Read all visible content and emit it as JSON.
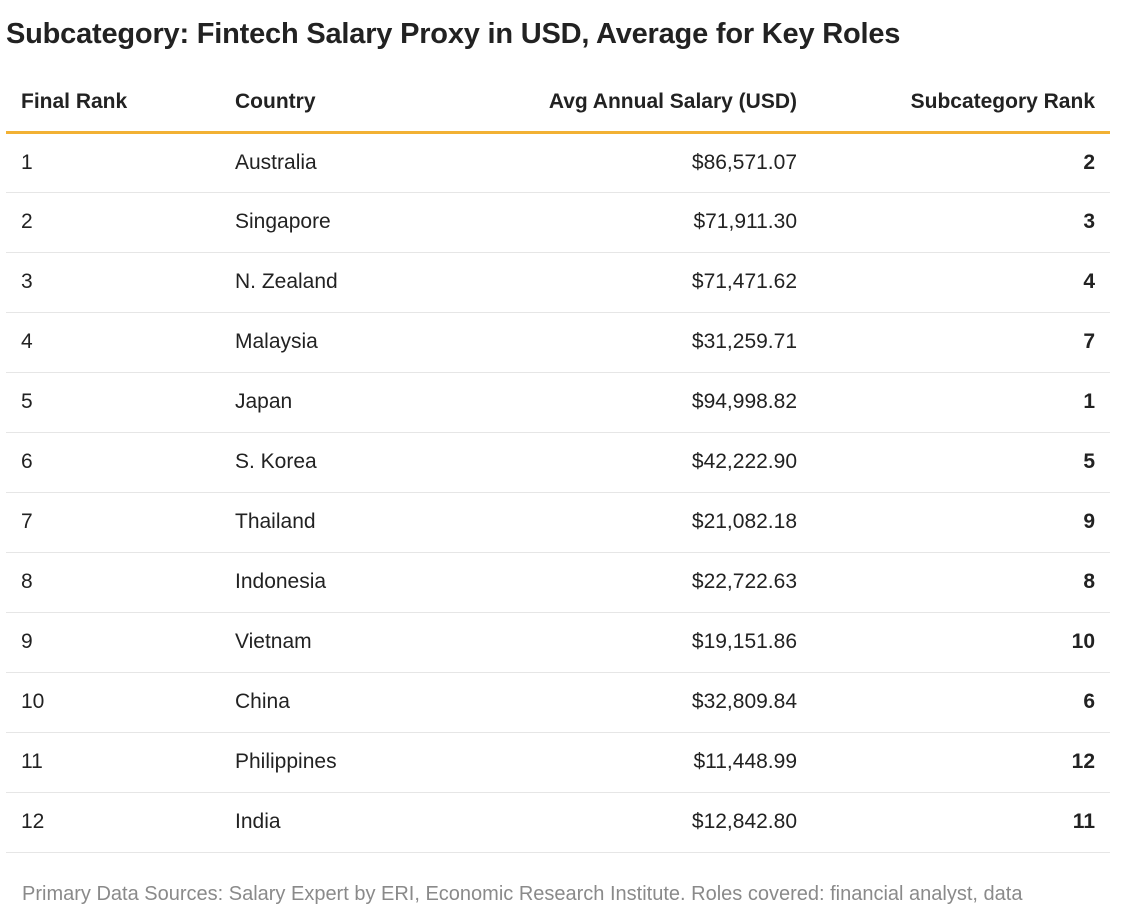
{
  "chart_data": {
    "type": "table",
    "title": "Subcategory: Fintech Salary Proxy in USD, Average for Key Roles",
    "columns": [
      "Final Rank",
      "Country",
      "Avg Annual Salary (USD)",
      "Subcategory Rank"
    ],
    "rows": [
      {
        "final_rank": "1",
        "country": "Australia",
        "salary": "$86,571.07",
        "subcategory_rank": "2"
      },
      {
        "final_rank": "2",
        "country": "Singapore",
        "salary": "$71,911.30",
        "subcategory_rank": "3"
      },
      {
        "final_rank": "3",
        "country": "N. Zealand",
        "salary": "$71,471.62",
        "subcategory_rank": "4"
      },
      {
        "final_rank": "4",
        "country": "Malaysia",
        "salary": "$31,259.71",
        "subcategory_rank": "7"
      },
      {
        "final_rank": "5",
        "country": "Japan",
        "salary": "$94,998.82",
        "subcategory_rank": "1"
      },
      {
        "final_rank": "6",
        "country": "S. Korea",
        "salary": "$42,222.90",
        "subcategory_rank": "5"
      },
      {
        "final_rank": "7",
        "country": "Thailand",
        "salary": "$21,082.18",
        "subcategory_rank": "9"
      },
      {
        "final_rank": "8",
        "country": "Indonesia",
        "salary": "$22,722.63",
        "subcategory_rank": "8"
      },
      {
        "final_rank": "9",
        "country": "Vietnam",
        "salary": "$19,151.86",
        "subcategory_rank": "10"
      },
      {
        "final_rank": "10",
        "country": "China",
        "salary": "$32,809.84",
        "subcategory_rank": "6"
      },
      {
        "final_rank": "11",
        "country": "Philippines",
        "salary": "$11,448.99",
        "subcategory_rank": "12"
      },
      {
        "final_rank": "12",
        "country": "India",
        "salary": "$12,842.80",
        "subcategory_rank": "11"
      }
    ],
    "footer": "Primary Data Sources: Salary Expert by ERI, Economic Research Institute. Roles covered: financial analyst, data"
  },
  "colors": {
    "header_rule": "#f2b134",
    "row_rule": "#e6e6e6",
    "text": "#222222",
    "footer_text": "#8a8a8a"
  }
}
